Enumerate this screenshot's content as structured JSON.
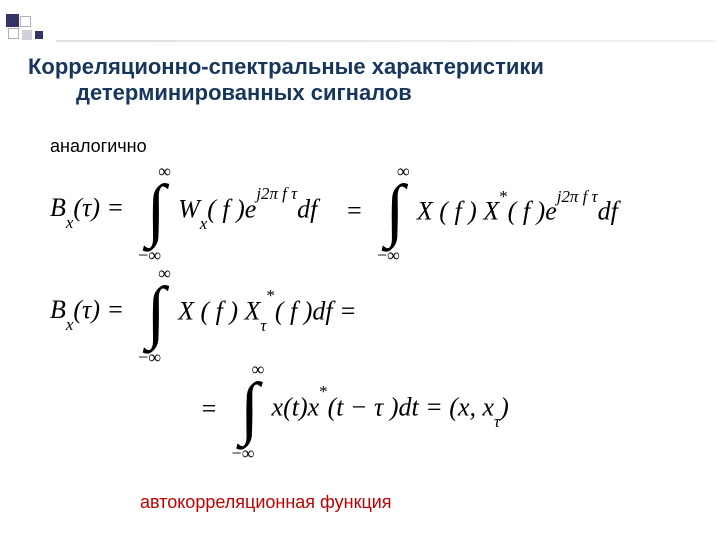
{
  "colors": {
    "title": "#17365d",
    "footer": "#c00000",
    "square_dark": "#333366",
    "background": "#ffffff"
  },
  "title_line1": "Корреляционно-спектральные характеристики",
  "title_line2": "детерминированных сигналов",
  "label_analog": "аналогично",
  "eq1": {
    "lhs": "B",
    "lhs_sub": "x",
    "lhs_arg": "(τ) =",
    "int_top": "∞",
    "int_bot": "−∞",
    "body1": "W",
    "body1_sub": "x",
    "body1_arg": "( f )e",
    "exp1": "j2π f τ",
    "tail1": "df",
    "eq_mid": "=",
    "body2a": "X ( f ) X",
    "body2_sup": "*",
    "body2_arg": "( f )e",
    "exp2": "j2π f τ",
    "tail2": "df"
  },
  "eq2": {
    "lhs": "B",
    "lhs_sub": "x",
    "lhs_arg": "(τ) =",
    "int_top": "∞",
    "int_bot": "−∞",
    "body": "X ( f ) X",
    "tau_sub": "τ",
    "star": "*",
    "body_arg": "( f )df =",
    "int2_top": "∞",
    "int2_bot": "−∞",
    "row3_pre": "=",
    "row3_body": "x(t)x",
    "row3_star": "*",
    "row3_arg": "(t − τ )dt = (x, x",
    "row3_sub": "τ",
    "row3_close": ")"
  },
  "footer_label": "автокорреляционная функция"
}
